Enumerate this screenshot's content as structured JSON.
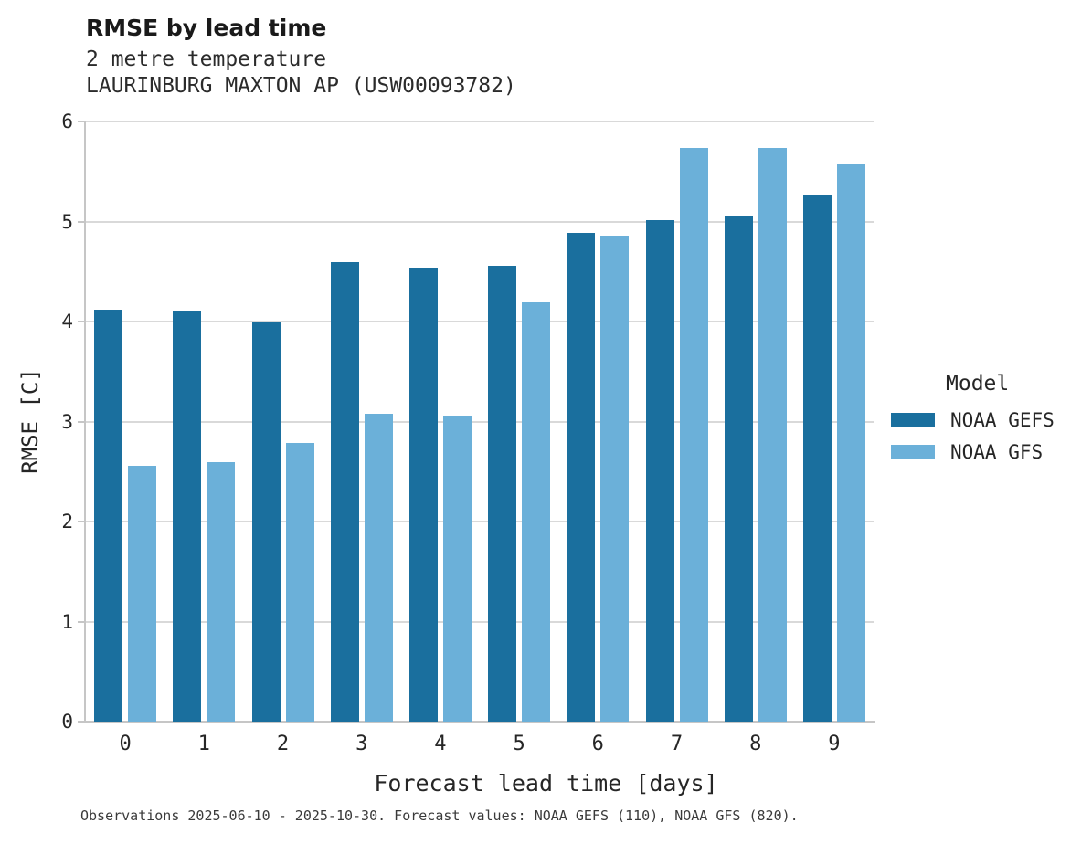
{
  "header": {
    "title": "RMSE by lead time",
    "subtitle1": "2 metre temperature",
    "subtitle2": "LAURINBURG MAXTON AP (USW00093782)"
  },
  "chart_data": {
    "type": "bar",
    "title": "RMSE by lead time",
    "subtitle": "2 metre temperature",
    "station": "LAURINBURG MAXTON AP (USW00093782)",
    "categories": [
      "0",
      "1",
      "2",
      "3",
      "4",
      "5",
      "6",
      "7",
      "8",
      "9"
    ],
    "series": [
      {
        "name": "NOAA GEFS",
        "color": "#1A6F9E",
        "values": [
          4.12,
          4.1,
          4.0,
          4.59,
          4.54,
          4.56,
          4.89,
          5.01,
          5.06,
          5.27
        ]
      },
      {
        "name": "NOAA GFS",
        "color": "#6BB0D9",
        "values": [
          2.56,
          2.59,
          2.79,
          3.08,
          3.06,
          4.19,
          4.86,
          5.74,
          5.74,
          5.58
        ]
      }
    ],
    "xlabel": "Forecast lead time [days]",
    "ylabel": "RMSE [C]",
    "ylim": [
      0,
      6
    ],
    "yticks": [
      0,
      1,
      2,
      3,
      4,
      5,
      6
    ],
    "grid": true,
    "legend_title": "Model",
    "legend_position": "right",
    "grid_color": "#d9d9d9",
    "spine_color": "#c6c6c6"
  },
  "footer": {
    "note": "Observations 2025-06-10 - 2025-10-30. Forecast values: NOAA GEFS (110), NOAA GFS (820)."
  }
}
